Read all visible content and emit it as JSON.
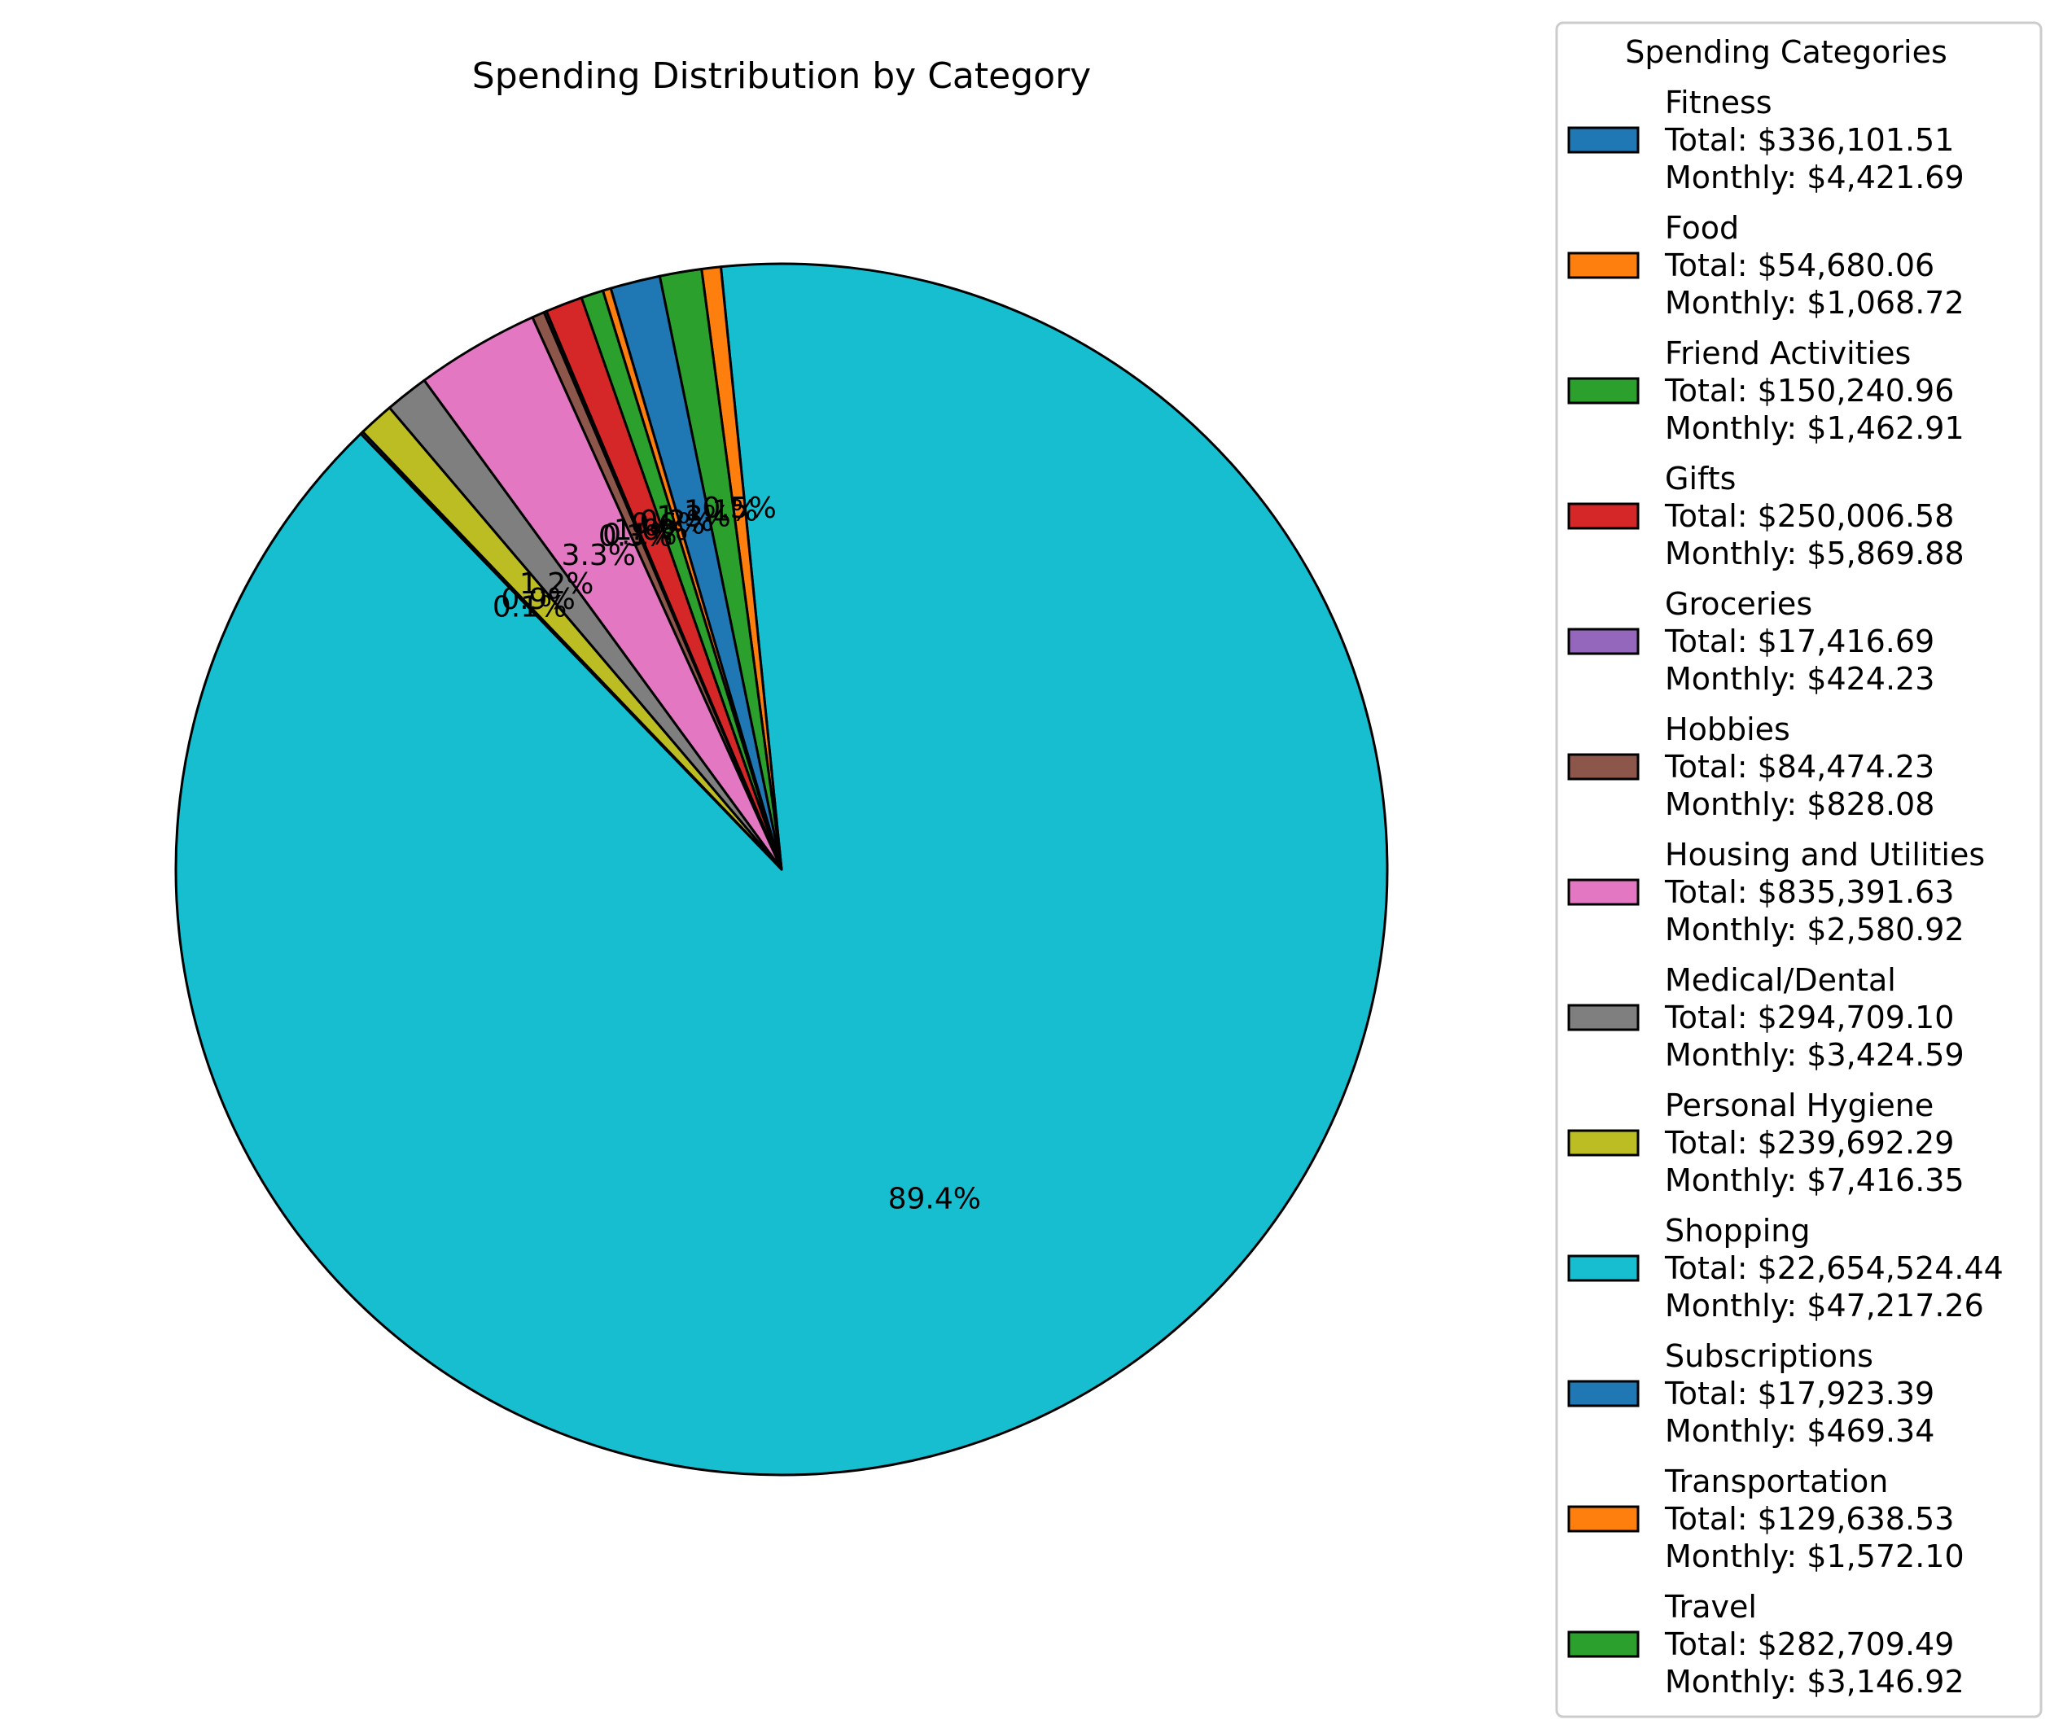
{
  "chart_data": {
    "type": "pie",
    "title": "Spending Distribution by Category",
    "legend_title": "Spending Categories",
    "legend_position": "right",
    "start_angle_deg": 134,
    "categories": [
      "Fitness",
      "Food",
      "Friend Activities",
      "Gifts",
      "Groceries",
      "Hobbies",
      "Housing and Utilities",
      "Medical/Dental",
      "Personal Hygiene",
      "Shopping",
      "Subscriptions",
      "Transportation",
      "Travel"
    ],
    "colors": [
      "#1f77b4",
      "#ff7f0e",
      "#2ca02c",
      "#d62728",
      "#9467bd",
      "#8c564b",
      "#e377c2",
      "#7f7f7f",
      "#bcbd22",
      "#17becf",
      "#1f77b4",
      "#ff7f0e",
      "#2ca02c"
    ],
    "slices": [
      {
        "category": "Shopping",
        "value": 22654524.44,
        "pct_label": "89.4%"
      },
      {
        "category": "Transportation",
        "value": 129638.53,
        "pct_label": "0.5%"
      },
      {
        "category": "Travel",
        "value": 282709.49,
        "pct_label": "1.1%"
      },
      {
        "category": "Fitness",
        "value": 336101.51,
        "pct_label": "1.3%"
      },
      {
        "category": "Food",
        "value": 54680.06,
        "pct_label": "0.2%"
      },
      {
        "category": "Friend Activities",
        "value": 150240.96,
        "pct_label": "0.6%"
      },
      {
        "category": "Gifts",
        "value": 250006.58,
        "pct_label": "1.0%"
      },
      {
        "category": "Groceries",
        "value": 17416.69,
        "pct_label": "0.1%"
      },
      {
        "category": "Hobbies",
        "value": 84474.23,
        "pct_label": "0.3%"
      },
      {
        "category": "Housing and Utilities",
        "value": 835391.63,
        "pct_label": "3.3%"
      },
      {
        "category": "Medical/Dental",
        "value": 294709.1,
        "pct_label": "1.2%"
      },
      {
        "category": "Personal Hygiene",
        "value": 239692.29,
        "pct_label": "0.9%"
      },
      {
        "category": "Subscriptions",
        "value": 17923.39,
        "pct_label": "0.1%"
      }
    ],
    "legend": [
      {
        "name": "Fitness",
        "total": "Total: $336,101.51",
        "monthly": "Monthly: $4,421.69"
      },
      {
        "name": "Food",
        "total": "Total: $54,680.06",
        "monthly": "Monthly: $1,068.72"
      },
      {
        "name": "Friend Activities",
        "total": "Total: $150,240.96",
        "monthly": "Monthly: $1,462.91"
      },
      {
        "name": "Gifts",
        "total": "Total: $250,006.58",
        "monthly": "Monthly: $5,869.88"
      },
      {
        "name": "Groceries",
        "total": "Total: $17,416.69",
        "monthly": "Monthly: $424.23"
      },
      {
        "name": "Hobbies",
        "total": "Total: $84,474.23",
        "monthly": "Monthly: $828.08"
      },
      {
        "name": "Housing and Utilities",
        "total": "Total: $835,391.63",
        "monthly": "Monthly: $2,580.92"
      },
      {
        "name": "Medical/Dental",
        "total": "Total: $294,709.10",
        "monthly": "Monthly: $3,424.59"
      },
      {
        "name": "Personal Hygiene",
        "total": "Total: $239,692.29",
        "monthly": "Monthly: $7,416.35"
      },
      {
        "name": "Shopping",
        "total": "Total: $22,654,524.44",
        "monthly": "Monthly: $47,217.26"
      },
      {
        "name": "Subscriptions",
        "total": "Total: $17,923.39",
        "monthly": "Monthly: $469.34"
      },
      {
        "name": "Transportation",
        "total": "Total: $129,638.53",
        "monthly": "Monthly: $1,572.10"
      },
      {
        "name": "Travel",
        "total": "Total: $282,709.49",
        "monthly": "Monthly: $3,146.92"
      }
    ]
  }
}
